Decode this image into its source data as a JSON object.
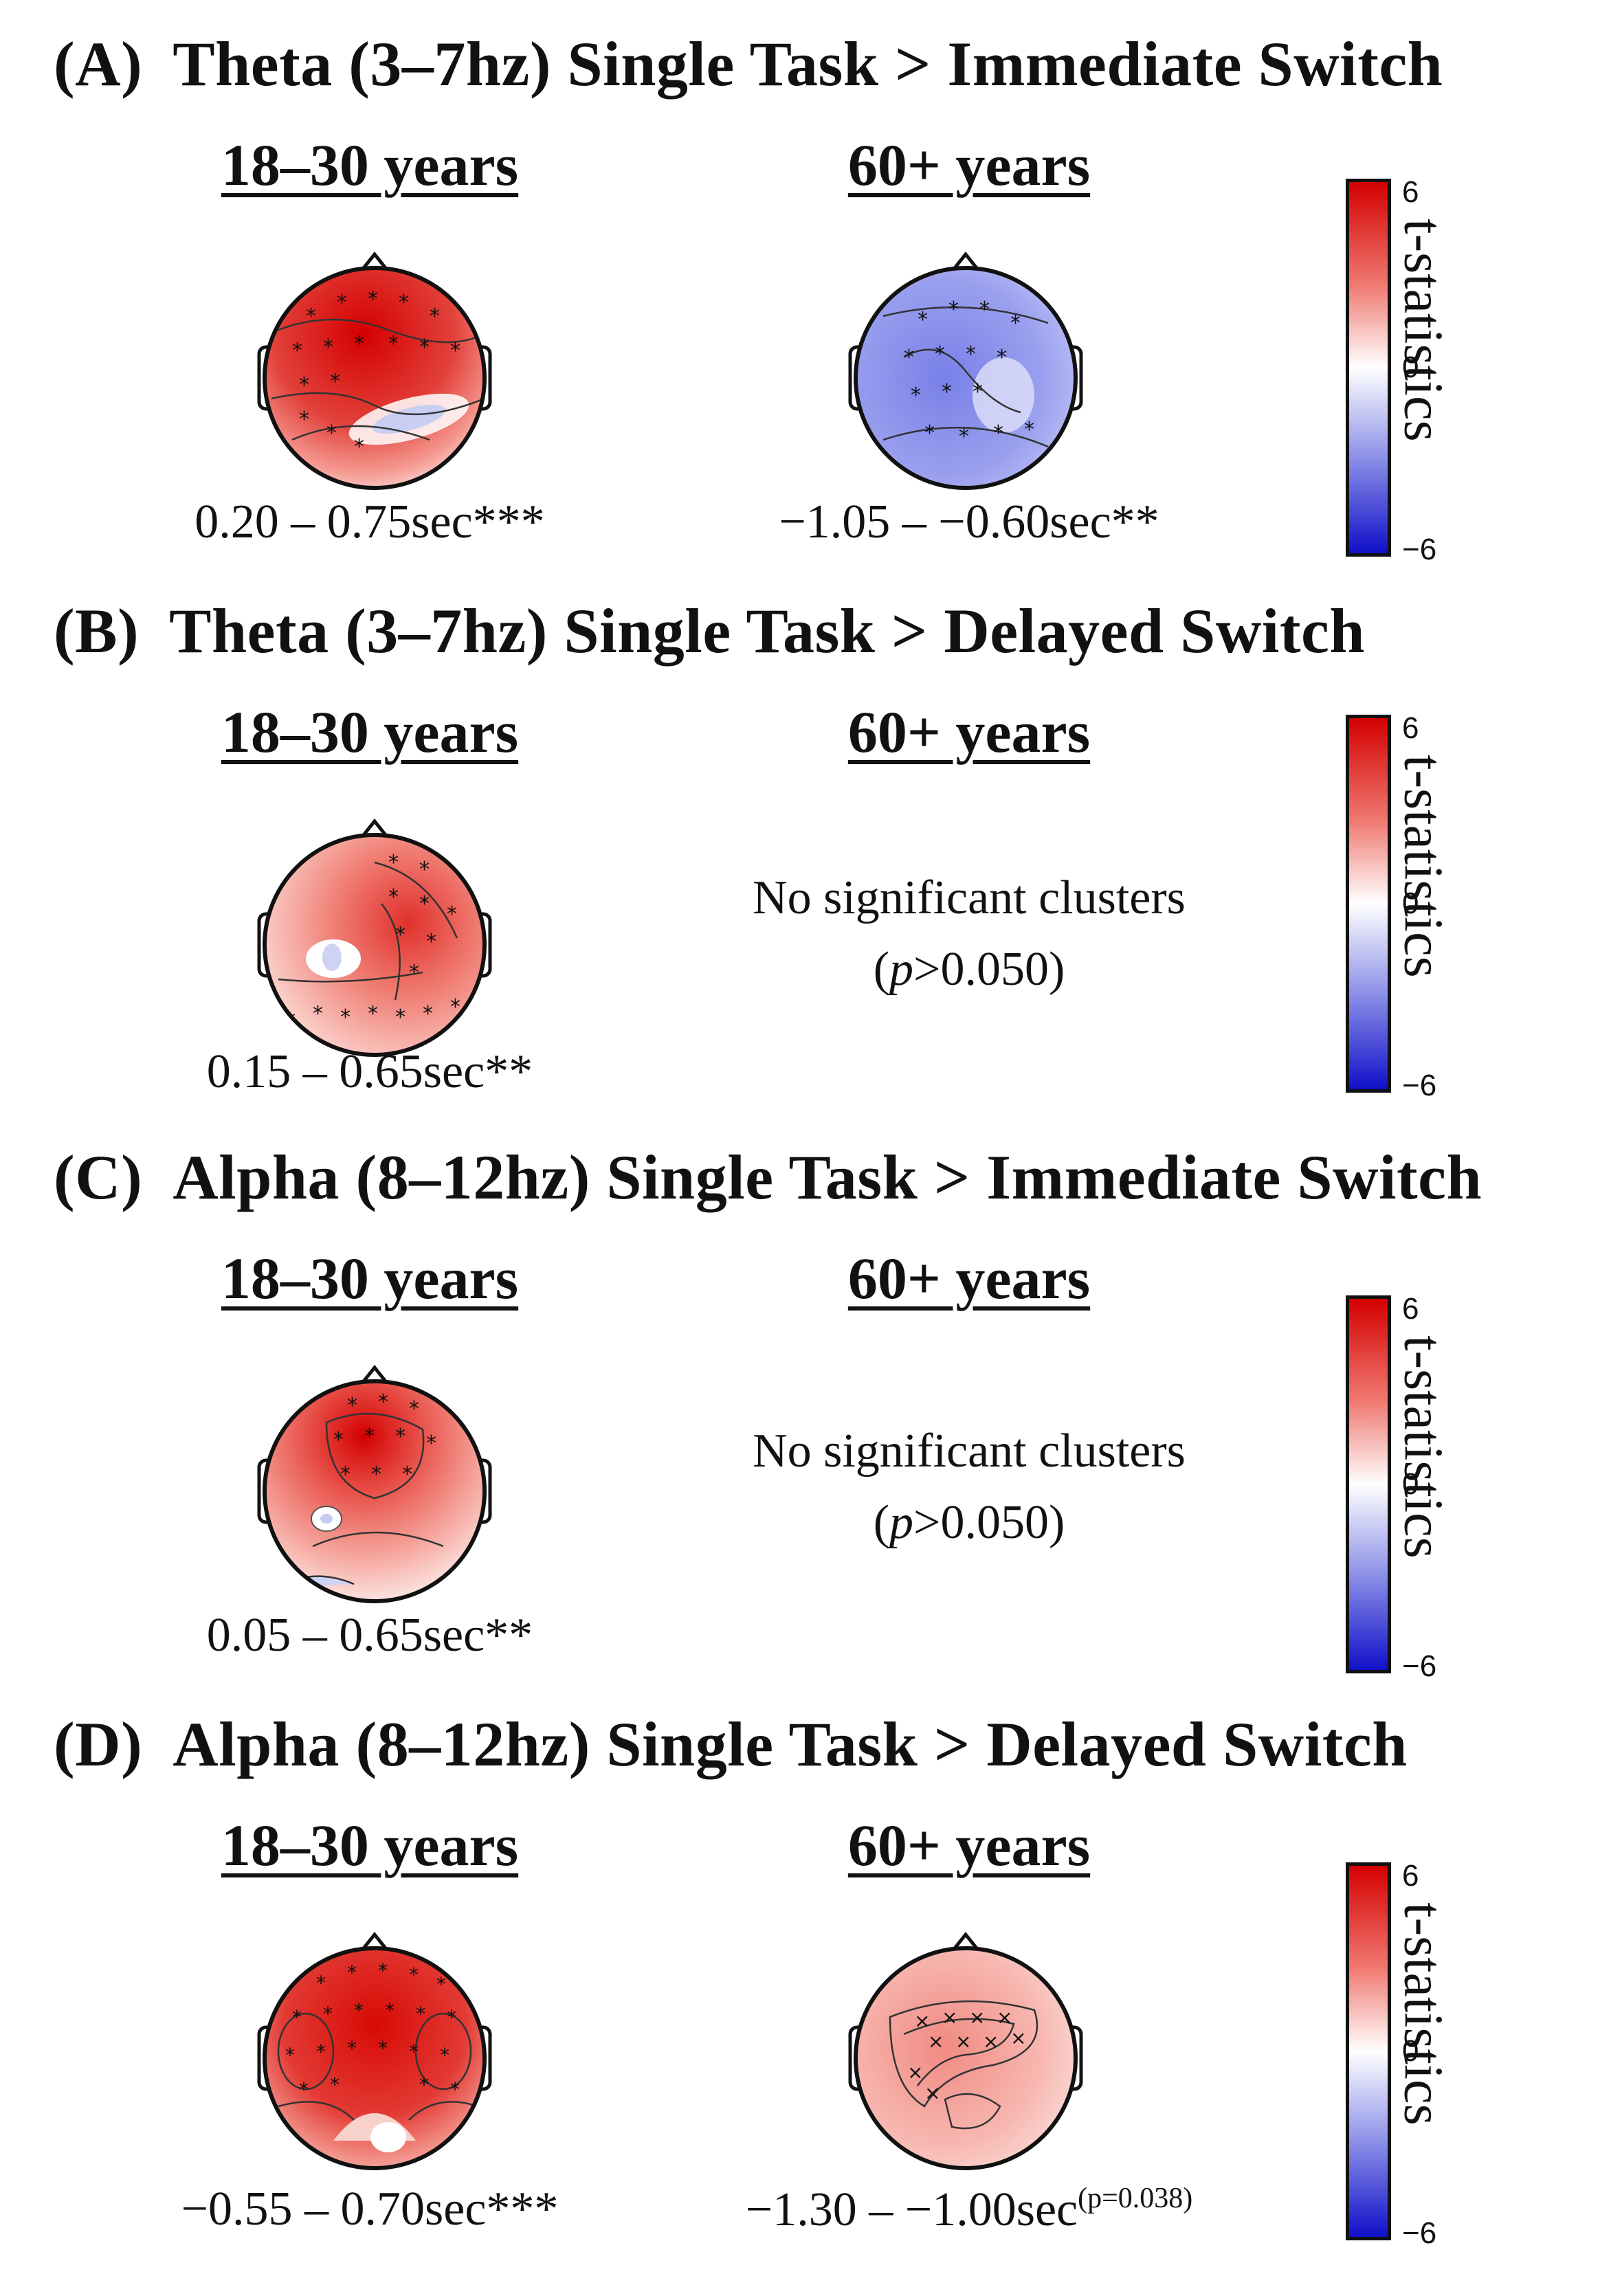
{
  "colors": {
    "red": "#d40000",
    "blue": "#1010c8",
    "white": "#ffffff"
  },
  "colorbar": {
    "max_label": "6",
    "mid_label": "0",
    "min_label": "−6",
    "label": "t-statistics"
  },
  "panels": [
    {
      "letter": "(A)",
      "title": "Theta (3–7hz) Single Task > Immediate Switch",
      "young": {
        "age": "18–30 years",
        "time": "0.20 – 0.75sec***",
        "map_color": "red",
        "level": 0.85
      },
      "old": {
        "age": "60+ years",
        "time": "−1.05 – −0.60sec**",
        "map_color": "blue",
        "level": 0.55
      }
    },
    {
      "letter": "(B)",
      "title": "Theta (3–7hz) Single Task > Delayed Switch",
      "young": {
        "age": "18–30 years",
        "time": "0.15 – 0.65sec**",
        "map_color": "red",
        "level": 0.55
      },
      "old": {
        "age": "60+ years",
        "nosig_line1": "No significant clusters",
        "nosig_p": "p",
        "nosig_rest": ">0.050)",
        "nosig_open": "("
      }
    },
    {
      "letter": "(C)",
      "title": "Alpha (8–12hz) Single Task > Immediate Switch",
      "young": {
        "age": "18–30 years",
        "time": "0.05 – 0.65sec**",
        "map_color": "red",
        "level": 0.6
      },
      "old": {
        "age": "60+ years",
        "nosig_line1": "No significant clusters",
        "nosig_p": "p",
        "nosig_rest": ">0.050)",
        "nosig_open": "("
      }
    },
    {
      "letter": "(D)",
      "title": "Alpha (8–12hz) Single Task > Delayed Switch",
      "young": {
        "age": "18–30 years",
        "time": "−0.55 – 0.70sec***",
        "map_color": "red",
        "level": 0.85
      },
      "old": {
        "age": "60+ years",
        "time": "−1.30 – −1.00sec",
        "time_sup": "(p=0.038)",
        "map_color": "red",
        "level": 0.35
      }
    }
  ]
}
